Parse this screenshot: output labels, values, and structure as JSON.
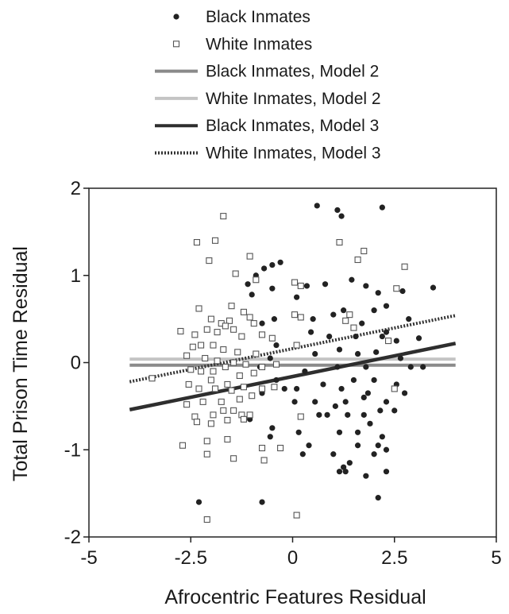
{
  "chart_data": {
    "type": "scatter",
    "title": "",
    "xlabel": "Afrocentric Features Residual",
    "ylabel": "Total Prison Time Residual",
    "xlim": [
      -5,
      5
    ],
    "ylim": [
      -2,
      2
    ],
    "xticks": [
      -5,
      -2.5,
      0,
      2.5,
      5
    ],
    "xtick_labels": [
      "-5",
      "-2.5",
      "0",
      "2.5",
      "5"
    ],
    "yticks": [
      -2,
      -1,
      0,
      1,
      2
    ],
    "ytick_labels": [
      "-2",
      "-1",
      "0",
      "1",
      "2"
    ],
    "grid": false,
    "legend_position": "top",
    "legend": [
      {
        "label": "Black Inmates",
        "style": "filled-dot",
        "color": "#222222"
      },
      {
        "label": "White Inmates",
        "style": "open-square",
        "color": "#555555"
      },
      {
        "label": "Black Inmates, Model 2",
        "style": "line",
        "color": "#8a8a8a"
      },
      {
        "label": "White Inmates, Model 2",
        "style": "line",
        "color": "#c4c4c4"
      },
      {
        "label": "Black Inmates, Model 3",
        "style": "line",
        "color": "#2e2e2e"
      },
      {
        "label": "White Inmates, Model 3",
        "style": "dotted-line",
        "color": "#333333"
      }
    ],
    "series": [
      {
        "name": "Black Inmates",
        "marker": "filled-dot",
        "color": "#222222",
        "points": [
          [
            0.6,
            1.8
          ],
          [
            1.1,
            1.75
          ],
          [
            1.2,
            1.68
          ],
          [
            2.2,
            1.78
          ],
          [
            -0.5,
            1.12
          ],
          [
            -0.3,
            1.15
          ],
          [
            -0.7,
            1.08
          ],
          [
            -0.9,
            1.0
          ],
          [
            0.35,
            0.88
          ],
          [
            0.8,
            0.9
          ],
          [
            1.45,
            0.95
          ],
          [
            1.8,
            0.88
          ],
          [
            2.1,
            0.8
          ],
          [
            2.7,
            0.82
          ],
          [
            3.45,
            0.86
          ],
          [
            -0.5,
            0.85
          ],
          [
            -1.1,
            0.9
          ],
          [
            -1.0,
            0.78
          ],
          [
            0.1,
            0.75
          ],
          [
            1.0,
            0.55
          ],
          [
            1.25,
            0.6
          ],
          [
            2.0,
            0.6
          ],
          [
            2.3,
            0.65
          ],
          [
            2.85,
            0.5
          ],
          [
            0.5,
            0.5
          ],
          [
            1.7,
            0.45
          ],
          [
            2.3,
            0.35
          ],
          [
            -0.45,
            0.5
          ],
          [
            -0.75,
            0.45
          ],
          [
            0.45,
            0.35
          ],
          [
            0.9,
            0.3
          ],
          [
            1.55,
            0.3
          ],
          [
            2.2,
            0.3
          ],
          [
            2.55,
            0.25
          ],
          [
            3.1,
            0.28
          ],
          [
            -0.4,
            0.2
          ],
          [
            1.15,
            0.15
          ],
          [
            1.6,
            0.1
          ],
          [
            2.05,
            0.12
          ],
          [
            2.65,
            0.05
          ],
          [
            0.55,
            0.1
          ],
          [
            -0.55,
            0.05
          ],
          [
            1.1,
            -0.05
          ],
          [
            1.8,
            -0.05
          ],
          [
            2.9,
            -0.05
          ],
          [
            3.2,
            -0.05
          ],
          [
            -0.8,
            -0.05
          ],
          [
            0.3,
            -0.1
          ],
          [
            1.5,
            -0.2
          ],
          [
            2.0,
            -0.2
          ],
          [
            2.55,
            -0.25
          ],
          [
            2.75,
            -0.35
          ],
          [
            -0.4,
            -0.2
          ],
          [
            0.1,
            -0.3
          ],
          [
            0.75,
            -0.25
          ],
          [
            1.2,
            -0.3
          ],
          [
            1.85,
            -0.35
          ],
          [
            1.75,
            -0.4
          ],
          [
            1.3,
            -0.45
          ],
          [
            2.3,
            -0.45
          ],
          [
            0.55,
            -0.45
          ],
          [
            -0.2,
            -0.3
          ],
          [
            0.05,
            -0.45
          ],
          [
            -0.75,
            -0.35
          ],
          [
            1.05,
            -0.5
          ],
          [
            2.15,
            -0.55
          ],
          [
            0.65,
            -0.6
          ],
          [
            1.35,
            -0.6
          ],
          [
            1.75,
            -0.6
          ],
          [
            2.5,
            -0.55
          ],
          [
            0.85,
            -0.6
          ],
          [
            1.9,
            -0.7
          ],
          [
            1.6,
            -0.8
          ],
          [
            0.15,
            -0.8
          ],
          [
            -1.05,
            -0.65
          ],
          [
            -0.5,
            -0.75
          ],
          [
            0.4,
            -0.95
          ],
          [
            1.15,
            -0.8
          ],
          [
            2.2,
            -0.85
          ],
          [
            1.6,
            -0.95
          ],
          [
            0.25,
            -1.05
          ],
          [
            -0.55,
            -0.85
          ],
          [
            2.1,
            -0.95
          ],
          [
            1.0,
            -1.05
          ],
          [
            2.0,
            -1.05
          ],
          [
            2.3,
            -1.0
          ],
          [
            1.4,
            -1.15
          ],
          [
            1.25,
            -1.2
          ],
          [
            1.15,
            -1.25
          ],
          [
            1.3,
            -1.25
          ],
          [
            2.3,
            -1.25
          ],
          [
            1.8,
            -1.3
          ],
          [
            -2.3,
            -1.6
          ],
          [
            -0.75,
            -1.6
          ],
          [
            2.1,
            -1.55
          ]
        ]
      },
      {
        "name": "White Inmates",
        "marker": "open-square",
        "color": "#555555",
        "points": [
          [
            -1.7,
            1.68
          ],
          [
            -2.35,
            1.38
          ],
          [
            -1.9,
            1.4
          ],
          [
            1.15,
            1.38
          ],
          [
            1.75,
            1.28
          ],
          [
            -2.05,
            1.17
          ],
          [
            -1.05,
            1.22
          ],
          [
            1.6,
            1.18
          ],
          [
            2.75,
            1.1
          ],
          [
            -1.4,
            1.02
          ],
          [
            -0.9,
            0.95
          ],
          [
            0.05,
            0.92
          ],
          [
            0.2,
            0.88
          ],
          [
            2.55,
            0.85
          ],
          [
            -2.3,
            0.62
          ],
          [
            -1.5,
            0.65
          ],
          [
            -1.2,
            0.58
          ],
          [
            -2.0,
            0.5
          ],
          [
            -1.75,
            0.45
          ],
          [
            -1.55,
            0.48
          ],
          [
            -1.05,
            0.52
          ],
          [
            -0.95,
            0.45
          ],
          [
            0.05,
            0.55
          ],
          [
            0.2,
            0.52
          ],
          [
            1.4,
            0.55
          ],
          [
            -2.4,
            0.32
          ],
          [
            -2.75,
            0.36
          ],
          [
            -2.1,
            0.38
          ],
          [
            -1.85,
            0.35
          ],
          [
            -1.65,
            0.42
          ],
          [
            -1.45,
            0.38
          ],
          [
            -1.25,
            0.3
          ],
          [
            -0.75,
            0.32
          ],
          [
            -0.5,
            0.28
          ],
          [
            1.3,
            0.48
          ],
          [
            1.5,
            0.4
          ],
          [
            -2.45,
            0.18
          ],
          [
            -2.25,
            0.2
          ],
          [
            -1.95,
            0.2
          ],
          [
            -1.7,
            0.15
          ],
          [
            -1.35,
            0.12
          ],
          [
            -0.9,
            0.1
          ],
          [
            0.1,
            0.2
          ],
          [
            2.35,
            0.25
          ],
          [
            -2.6,
            0.08
          ],
          [
            -2.15,
            0.05
          ],
          [
            -1.85,
            0.02
          ],
          [
            -1.45,
            0.0
          ],
          [
            -1.15,
            -0.02
          ],
          [
            -0.75,
            -0.05
          ],
          [
            -0.4,
            -0.02
          ],
          [
            -2.5,
            -0.08
          ],
          [
            -2.25,
            -0.1
          ],
          [
            -1.95,
            -0.1
          ],
          [
            -1.65,
            -0.05
          ],
          [
            -1.3,
            -0.15
          ],
          [
            -0.95,
            -0.12
          ],
          [
            -3.45,
            -0.18
          ],
          [
            -2.0,
            -0.2
          ],
          [
            -1.6,
            -0.25
          ],
          [
            -2.55,
            -0.25
          ],
          [
            -2.3,
            -0.3
          ],
          [
            -1.9,
            -0.3
          ],
          [
            -1.5,
            -0.32
          ],
          [
            -1.2,
            -0.28
          ],
          [
            -0.75,
            -0.3
          ],
          [
            -0.45,
            -0.28
          ],
          [
            2.5,
            -0.3
          ],
          [
            -2.6,
            -0.48
          ],
          [
            -2.2,
            -0.45
          ],
          [
            -1.75,
            -0.45
          ],
          [
            -1.3,
            -0.42
          ],
          [
            -1.0,
            -0.38
          ],
          [
            -1.7,
            -0.55
          ],
          [
            -1.45,
            -0.55
          ],
          [
            -1.25,
            -0.6
          ],
          [
            -1.95,
            -0.6
          ],
          [
            -2.4,
            -0.62
          ],
          [
            -2.35,
            -0.68
          ],
          [
            -2.0,
            -0.7
          ],
          [
            -1.05,
            -0.6
          ],
          [
            -1.2,
            -0.65
          ],
          [
            0.2,
            -0.62
          ],
          [
            -1.6,
            -0.66
          ],
          [
            -2.7,
            -0.95
          ],
          [
            -2.1,
            -0.9
          ],
          [
            -1.6,
            -0.88
          ],
          [
            -0.75,
            -0.98
          ],
          [
            -0.3,
            -0.98
          ],
          [
            -2.1,
            -1.05
          ],
          [
            -1.45,
            -1.1
          ],
          [
            -0.7,
            -1.12
          ],
          [
            -2.1,
            -1.8
          ],
          [
            0.1,
            -1.75
          ]
        ]
      }
    ],
    "lines": [
      {
        "name": "Black Inmates, Model 2",
        "x": [
          -4,
          4
        ],
        "y": [
          -0.03,
          -0.03
        ],
        "color": "#8a8a8a",
        "style": "solid"
      },
      {
        "name": "White Inmates, Model 2",
        "x": [
          -4,
          4
        ],
        "y": [
          0.04,
          0.04
        ],
        "color": "#c4c4c4",
        "style": "solid"
      },
      {
        "name": "Black Inmates, Model 3",
        "x": [
          -4,
          4
        ],
        "y": [
          -0.54,
          0.22
        ],
        "color": "#2e2e2e",
        "style": "solid"
      },
      {
        "name": "White Inmates, Model 3",
        "x": [
          -4,
          4
        ],
        "y": [
          -0.22,
          0.54
        ],
        "color": "#333333",
        "style": "dotted"
      }
    ]
  }
}
